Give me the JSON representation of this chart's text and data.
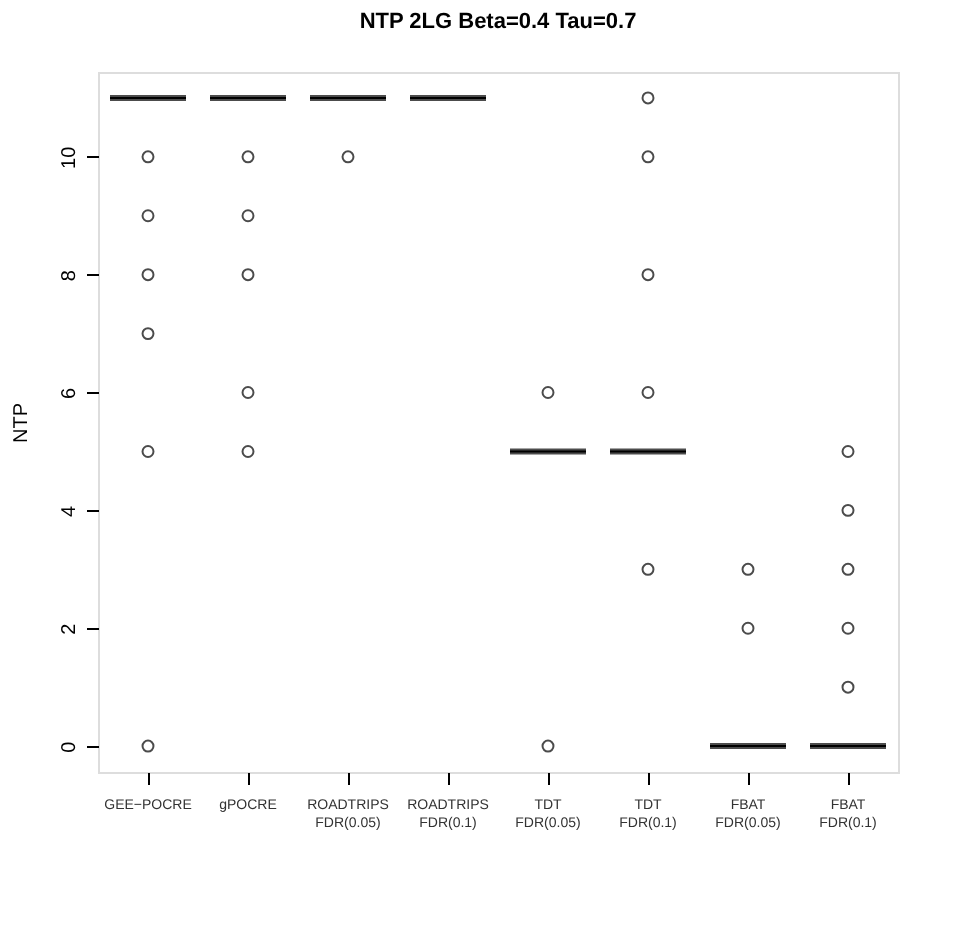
{
  "chart_data": {
    "type": "box",
    "title": "NTP 2LG Beta=0.4 Tau=0.7",
    "ylabel": "NTP",
    "categories": [
      "GEE−POCRE",
      "gPOCRE",
      "ROADTRIPS FDR(0.05)",
      "ROADTRIPS FDR(0.1)",
      "TDT FDR(0.05)",
      "TDT FDR(0.1)",
      "FBAT FDR(0.05)",
      "FBAT FDR(0.1)"
    ],
    "boxes": [
      {
        "low": 11,
        "q1": 11,
        "median": 11,
        "q3": 11,
        "high": 11,
        "outliers": [
          10,
          9,
          8,
          7,
          5,
          0
        ]
      },
      {
        "low": 11,
        "q1": 11,
        "median": 11,
        "q3": 11,
        "high": 11,
        "outliers": [
          10,
          9,
          8,
          6,
          5
        ]
      },
      {
        "low": 11,
        "q1": 11,
        "median": 11,
        "q3": 11,
        "high": 11,
        "outliers": [
          10
        ]
      },
      {
        "low": 11,
        "q1": 11,
        "median": 11,
        "q3": 11,
        "high": 11
      },
      {
        "low": 5,
        "q1": 5,
        "median": 5,
        "q3": 5,
        "high": 5,
        "outliers": [
          6,
          0
        ]
      },
      {
        "low": 5,
        "q1": 5,
        "median": 5,
        "q3": 5,
        "high": 5,
        "outliers": [
          11,
          10,
          8,
          6,
          3
        ]
      },
      {
        "low": 0,
        "q1": 0,
        "median": 0,
        "q3": 0,
        "high": 0,
        "outliers": [
          3,
          2
        ]
      },
      {
        "low": 0,
        "q1": 0,
        "median": 0,
        "q3": 0,
        "high": 0,
        "outliers": [
          5,
          4,
          3,
          2,
          1
        ]
      }
    ],
    "color": "#000000",
    "ylim": [
      -0.44,
      11.44
    ],
    "yticks": [
      0,
      2,
      4,
      6,
      8,
      10
    ],
    "grid": false
  }
}
